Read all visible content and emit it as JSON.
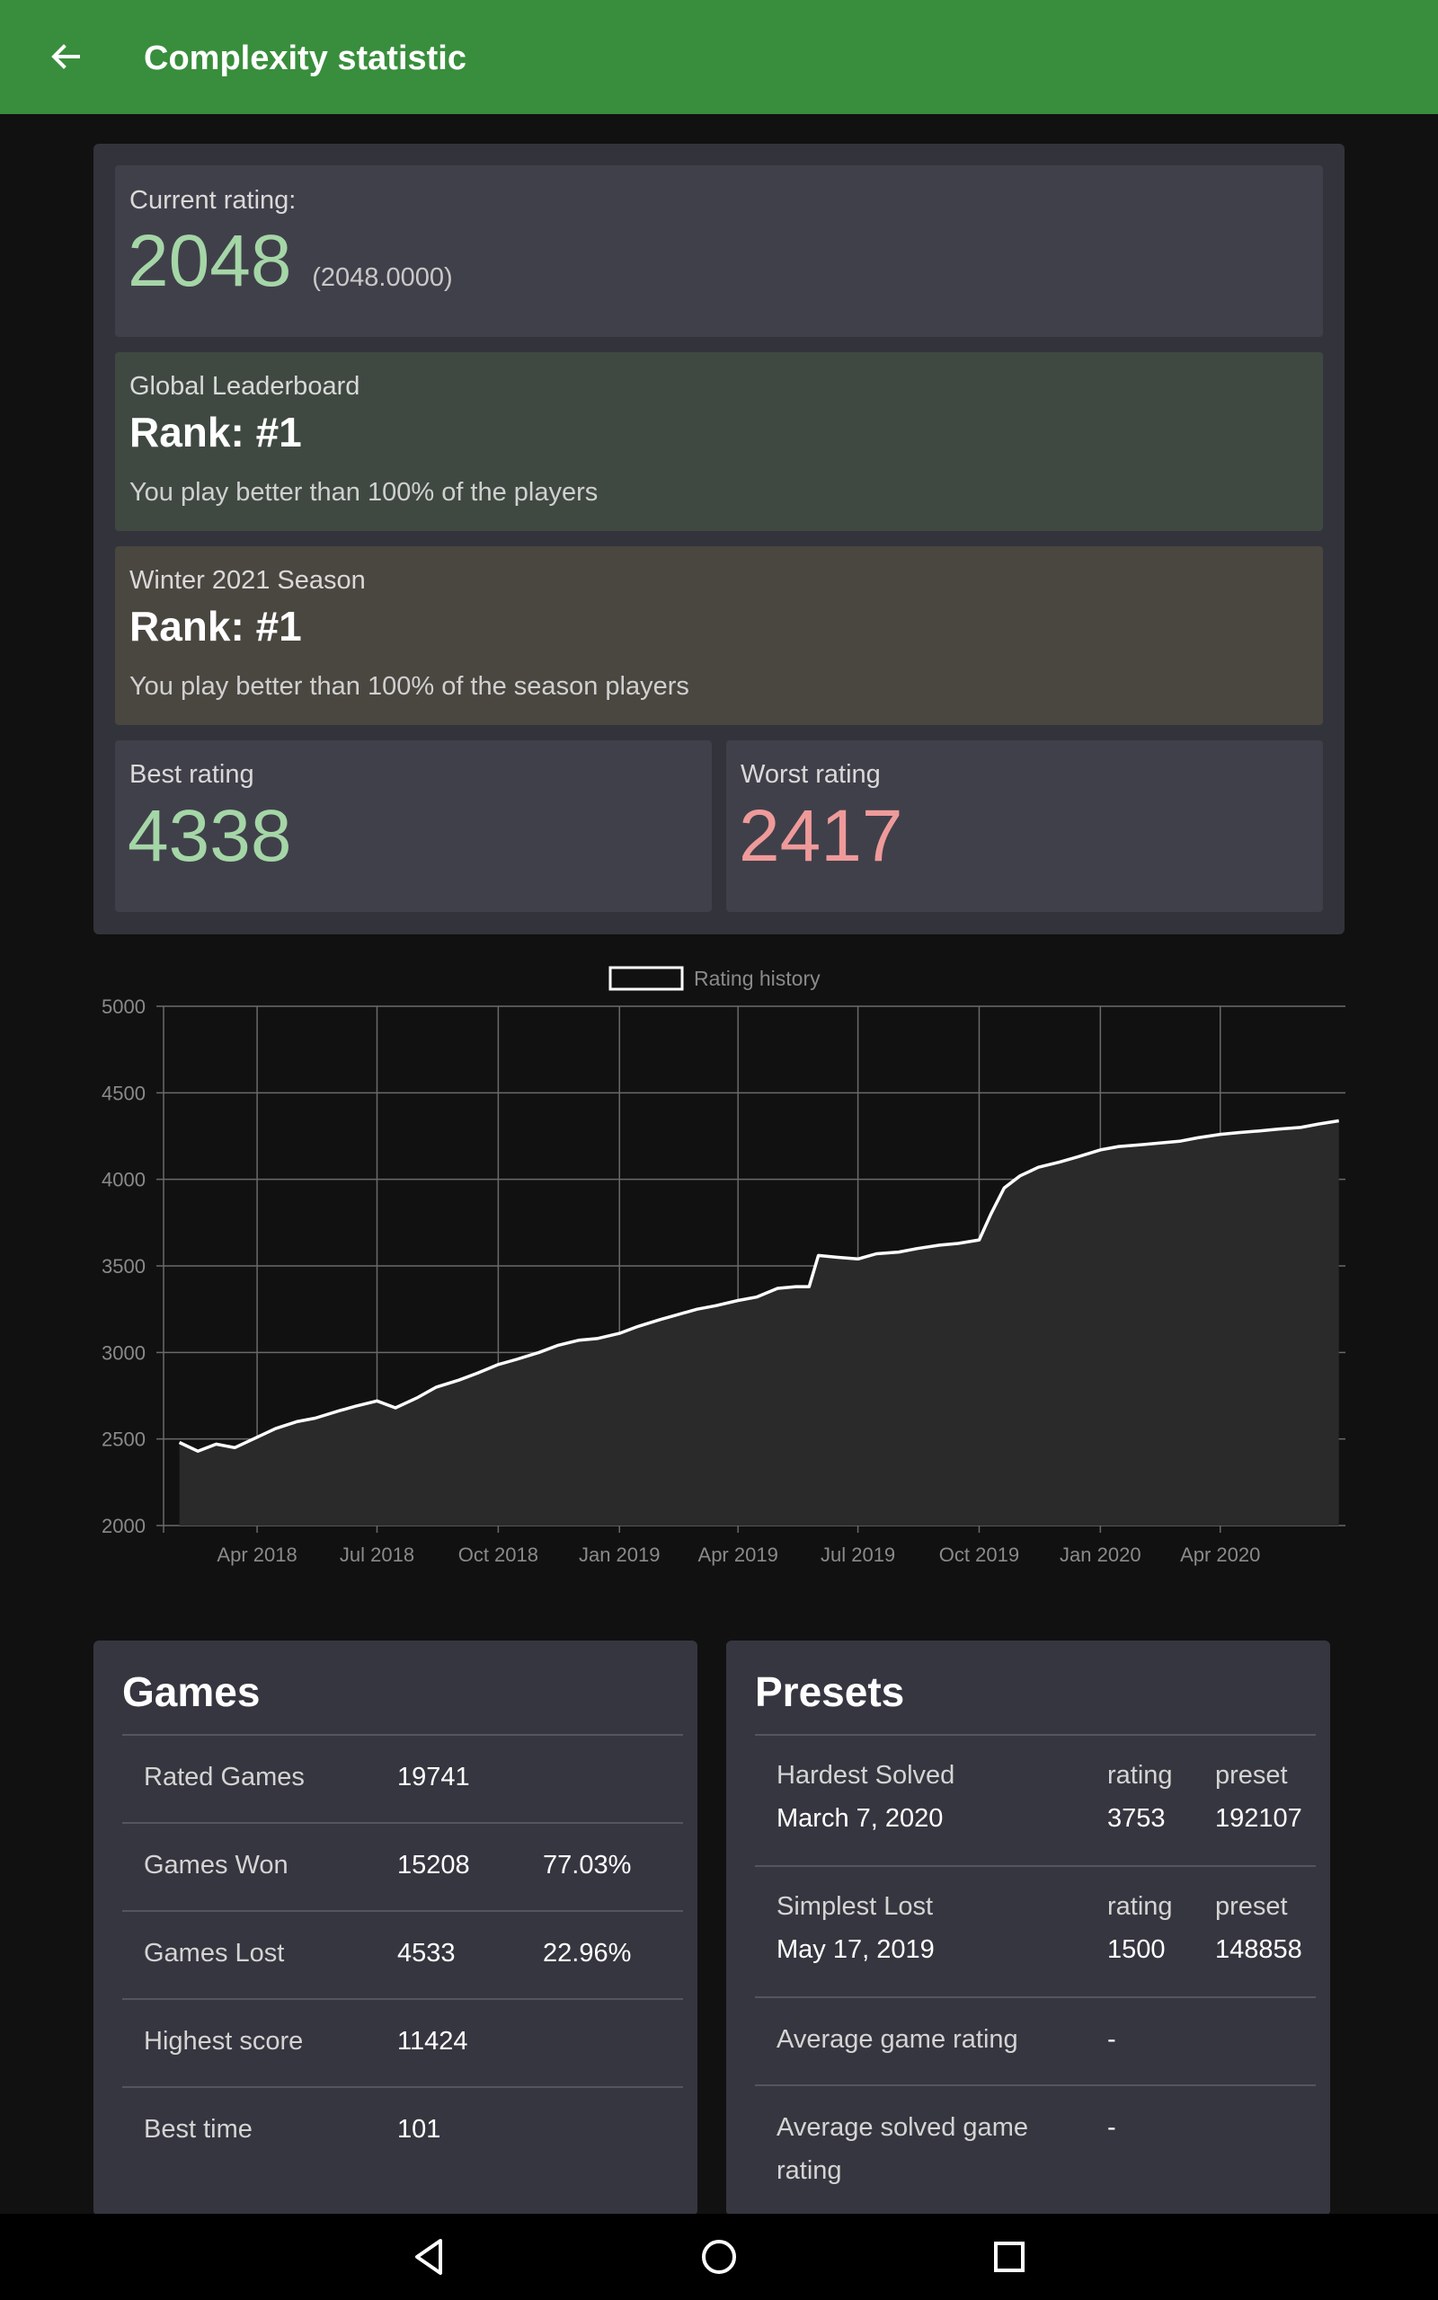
{
  "app_bar": {
    "title": "Complexity statistic",
    "back_icon": "arrow-back-icon"
  },
  "current": {
    "label": "Current rating:",
    "value": "2048",
    "precise": "(2048.0000)"
  },
  "global": {
    "label": "Global Leaderboard",
    "rank": "Rank: #1",
    "text": "You play better than 100% of the players"
  },
  "season": {
    "label": "Winter 2021 Season",
    "rank": "Rank: #1",
    "text": "You play better than 100% of the season players"
  },
  "best": {
    "label": "Best rating",
    "value": "4338"
  },
  "worst": {
    "label": "Worst rating",
    "value": "2417"
  },
  "colors": {
    "app_bar": "#388e3c",
    "best": "#a5d6a7",
    "worst": "#ef9a9a",
    "global_card": "#3f4942",
    "season_card": "#4a4640"
  },
  "chart_data": {
    "type": "line",
    "series": [
      {
        "name": "Rating history",
        "x": [
          "2018-02-01",
          "2018-02-15",
          "2018-03-01",
          "2018-03-15",
          "2018-04-01",
          "2018-04-15",
          "2018-05-01",
          "2018-05-15",
          "2018-06-01",
          "2018-06-15",
          "2018-07-01",
          "2018-07-15",
          "2018-08-01",
          "2018-08-15",
          "2018-09-01",
          "2018-09-15",
          "2018-10-01",
          "2018-10-15",
          "2018-11-01",
          "2018-11-15",
          "2018-12-01",
          "2018-12-15",
          "2019-01-01",
          "2019-01-15",
          "2019-02-01",
          "2019-02-15",
          "2019-03-01",
          "2019-03-15",
          "2019-04-01",
          "2019-04-15",
          "2019-05-01",
          "2019-05-15",
          "2019-05-25",
          "2019-06-01",
          "2019-06-15",
          "2019-07-01",
          "2019-07-15",
          "2019-08-01",
          "2019-08-15",
          "2019-09-01",
          "2019-09-15",
          "2019-10-01",
          "2019-10-10",
          "2019-10-20",
          "2019-11-01",
          "2019-11-15",
          "2019-12-01",
          "2019-12-15",
          "2020-01-01",
          "2020-01-15",
          "2020-02-01",
          "2020-02-15",
          "2020-03-01",
          "2020-03-15",
          "2020-04-01",
          "2020-04-15",
          "2020-05-01",
          "2020-05-15",
          "2020-06-01",
          "2020-06-15",
          "2020-06-30"
        ],
        "y": [
          2480,
          2430,
          2470,
          2450,
          2510,
          2560,
          2600,
          2620,
          2660,
          2690,
          2720,
          2680,
          2740,
          2800,
          2840,
          2880,
          2930,
          2960,
          3000,
          3040,
          3070,
          3080,
          3110,
          3150,
          3190,
          3220,
          3250,
          3270,
          3300,
          3320,
          3370,
          3380,
          3380,
          3560,
          3550,
          3540,
          3570,
          3580,
          3600,
          3620,
          3630,
          3650,
          3800,
          3950,
          4020,
          4070,
          4100,
          4130,
          4170,
          4190,
          4200,
          4210,
          4220,
          4240,
          4260,
          4270,
          4280,
          4290,
          4300,
          4320,
          4338
        ]
      }
    ],
    "x_ticks": [
      "Apr 2018",
      "Jul 2018",
      "Oct 2018",
      "Jan 2019",
      "Apr 2019",
      "Jul 2019",
      "Oct 2019",
      "Jan 2020",
      "Apr 2020"
    ],
    "y_ticks": [
      "2000",
      "2500",
      "3000",
      "3500",
      "4000",
      "4500",
      "5000"
    ],
    "ylim": [
      2000,
      5000
    ],
    "xlim": [
      "2018-01-20",
      "2020-07-05"
    ],
    "grid": true,
    "legend": "top-center",
    "line_color": "#ffffff",
    "fill_color": "#2a2a2a"
  },
  "games": {
    "title": "Games",
    "rows": [
      {
        "label": "Rated Games",
        "value": "19741",
        "pct": ""
      },
      {
        "label": "Games Won",
        "value": "15208",
        "pct": "77.03%"
      },
      {
        "label": "Games Lost",
        "value": "4533",
        "pct": "22.96%"
      },
      {
        "label": "Highest score",
        "value": "11424",
        "pct": ""
      },
      {
        "label": "Best time",
        "value": "101",
        "pct": ""
      }
    ]
  },
  "presets": {
    "title": "Presets",
    "rows": [
      {
        "label": "Hardest Solved",
        "date": "March 7, 2020",
        "rating_label": "rating",
        "rating": "3753",
        "preset_label": "preset",
        "preset": "192107"
      },
      {
        "label": "Simplest Lost",
        "date": "May 17, 2019",
        "rating_label": "rating",
        "rating": "1500",
        "preset_label": "preset",
        "preset": "148858"
      }
    ],
    "avg_game_label": "Average game rating",
    "avg_game": "-",
    "avg_solved_label_1": "Average solved game",
    "avg_solved_label_2": "rating",
    "avg_solved": "-"
  },
  "nav": {
    "back_icon": "nav-back-icon",
    "home_icon": "nav-home-icon",
    "recents_icon": "nav-recents-icon"
  }
}
